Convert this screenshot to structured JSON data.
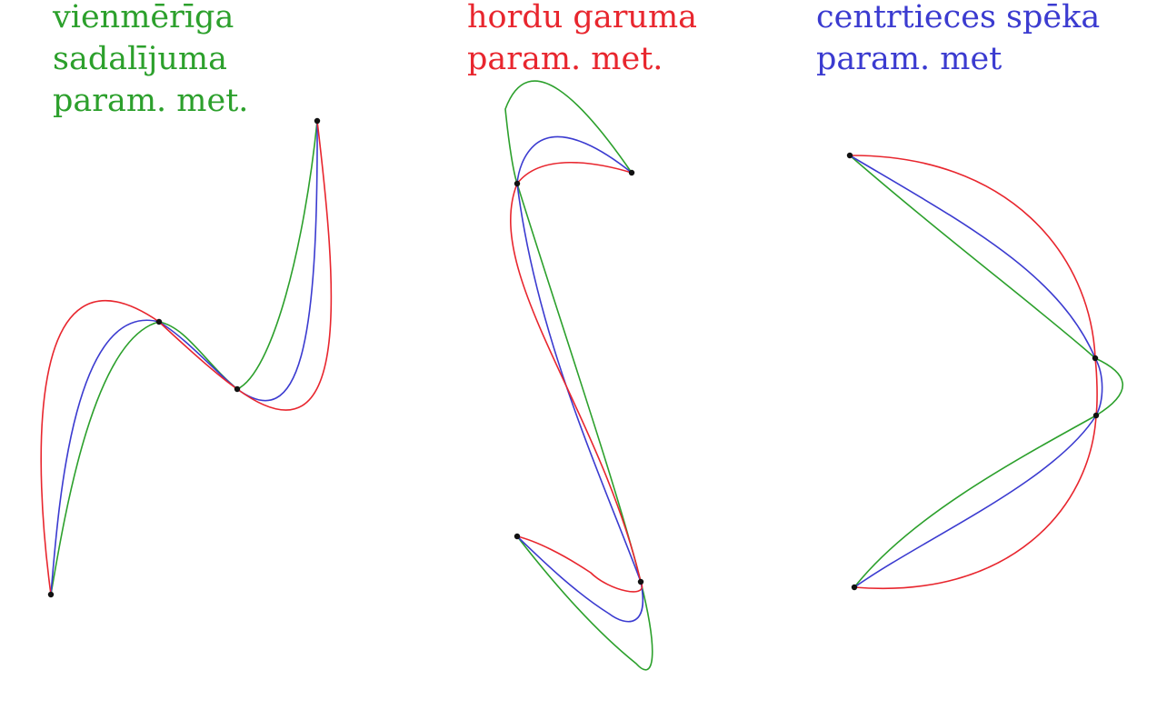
{
  "colors": {
    "uniform": "#2ca02c",
    "chord": "#e8262e",
    "centripetal": "#3b3bd0",
    "control_point": "#111111"
  },
  "legend": {
    "uniform": [
      "vienmērīga",
      "sadalījuma",
      "param. met."
    ],
    "chord": [
      "hordu garuma",
      "param. met."
    ],
    "centripetal": [
      "centrtieces spēka",
      "param. met"
    ]
  }
}
